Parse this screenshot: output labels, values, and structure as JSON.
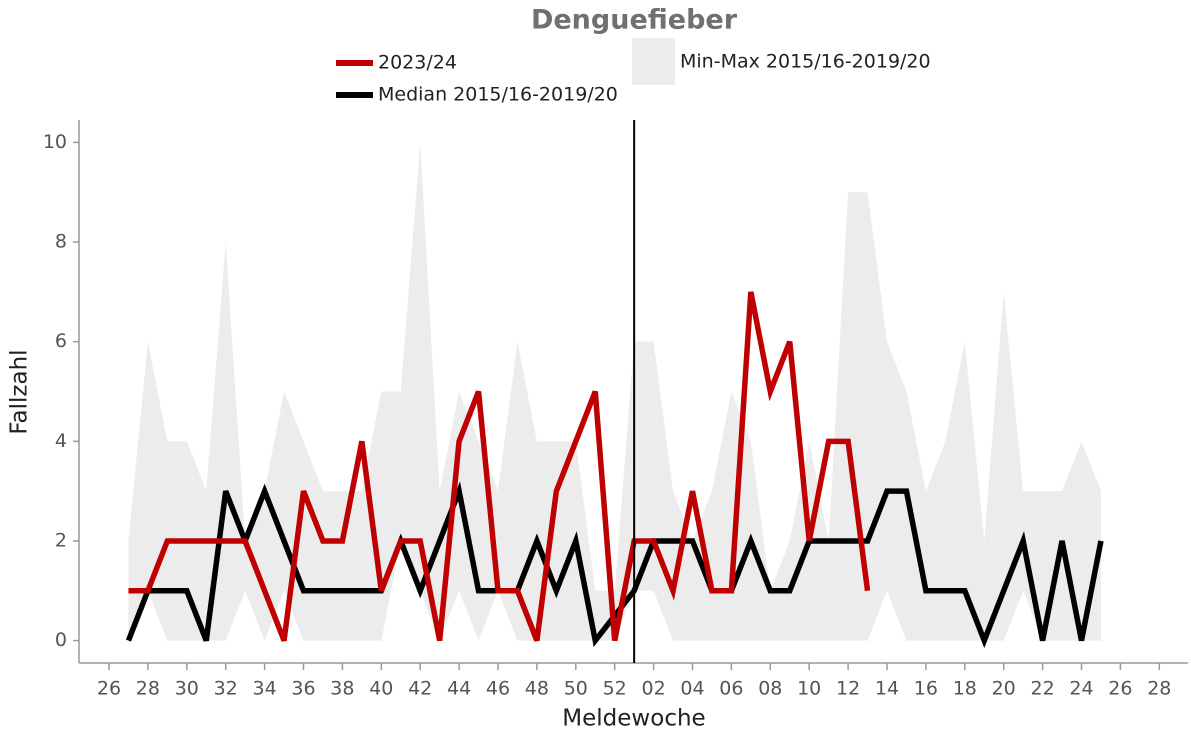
{
  "chart_data": {
    "type": "line",
    "title": "Denguefieber",
    "x_label": "Meldewoche",
    "y_label": "Fallzahl",
    "categories": [
      "26",
      null,
      "28",
      null,
      "30",
      null,
      "32",
      null,
      "34",
      null,
      "36",
      null,
      "38",
      null,
      "40",
      null,
      "42",
      null,
      "44",
      null,
      "46",
      null,
      "48",
      null,
      "50",
      null,
      "52",
      null,
      "02",
      null,
      "04",
      null,
      "06",
      null,
      "08",
      null,
      "10",
      null,
      "12",
      null,
      "14",
      null,
      "16",
      null,
      "18",
      null,
      "20",
      null,
      "22",
      null,
      "24",
      null,
      "26",
      null,
      "28"
    ],
    "ylim": [
      -0.45,
      10.45
    ],
    "yticks": [
      0,
      2,
      4,
      6,
      8,
      10
    ],
    "divider_index": 27,
    "band": {
      "name": "Min-Max 2015/16-2019/20",
      "color": "#ececec",
      "min": [
        null,
        0,
        1,
        0,
        0,
        0,
        0,
        1,
        0,
        1,
        0,
        0,
        0,
        0,
        0,
        2,
        1,
        0,
        1,
        0,
        1,
        0,
        0,
        0,
        0,
        0,
        0,
        1,
        1,
        0,
        0,
        0,
        0,
        0,
        0,
        0,
        0,
        0,
        0,
        0,
        1,
        0,
        0,
        0,
        0,
        0,
        0,
        1,
        0,
        0,
        0,
        0,
        null,
        null,
        null
      ],
      "max": [
        null,
        2,
        6,
        4,
        4,
        3,
        8,
        2,
        3,
        5,
        4,
        3,
        3,
        3,
        5,
        5,
        10,
        3,
        5,
        4,
        3,
        6,
        4,
        4,
        4,
        1,
        1,
        6,
        6,
        3,
        2,
        3,
        5,
        4,
        1,
        2,
        4,
        2,
        9,
        9,
        6,
        5,
        3,
        4,
        6,
        2,
        7,
        3,
        3,
        3,
        4,
        3,
        null,
        null,
        null
      ]
    },
    "series": [
      {
        "name": "2023/24",
        "color": "#c00000",
        "values": [
          null,
          1,
          1,
          2,
          2,
          2,
          2,
          2,
          1,
          0,
          3,
          2,
          2,
          4,
          1,
          2,
          2,
          0,
          4,
          5,
          1,
          1,
          0,
          3,
          4,
          5,
          0,
          2,
          2,
          1,
          3,
          1,
          1,
          7,
          5,
          6,
          2,
          4,
          4,
          1,
          null,
          null,
          null,
          null,
          null,
          null,
          null,
          null,
          null,
          null,
          null,
          null,
          null,
          null,
          null
        ]
      },
      {
        "name": "Median 2015/16-2019/20",
        "color": "#000000",
        "values": [
          null,
          0,
          1,
          1,
          1,
          0,
          3,
          2,
          3,
          2,
          1,
          1,
          1,
          1,
          1,
          2,
          1,
          2,
          3,
          1,
          1,
          1,
          2,
          1,
          2,
          0,
          0.5,
          1,
          2,
          2,
          2,
          1,
          1,
          2,
          1,
          1,
          2,
          2,
          2,
          2,
          3,
          3,
          1,
          1,
          1,
          0,
          1,
          2,
          0,
          2,
          0,
          2,
          null,
          null,
          null
        ]
      }
    ]
  }
}
